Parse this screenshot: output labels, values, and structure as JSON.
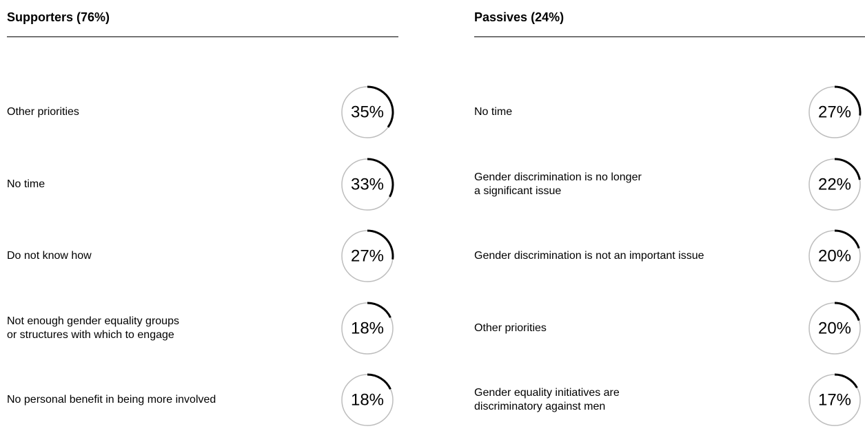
{
  "chart_data": [
    {
      "type": "radial",
      "title": "Supporters (76%)",
      "categories": [
        "Other priorities",
        "No time",
        "Do not know how",
        "Not enough gender equality groups\nor structures with which to engage",
        "No personal benefit in being more involved"
      ],
      "values": [
        35,
        33,
        27,
        18,
        18
      ],
      "value_labels": [
        "35%",
        "33%",
        "27%",
        "18%",
        "18%"
      ],
      "color": "#000000"
    },
    {
      "type": "radial",
      "title": "Passives (24%)",
      "categories": [
        "No time",
        "Gender discrimination is no longer\na significant issue",
        "Gender discrimination is not an important issue",
        "Other priorities",
        "Gender equality initiatives are\ndiscriminatory against men"
      ],
      "values": [
        27,
        22,
        20,
        20,
        17
      ],
      "value_labels": [
        "27%",
        "22%",
        "20%",
        "20%",
        "17%"
      ],
      "color": "#000000"
    }
  ]
}
